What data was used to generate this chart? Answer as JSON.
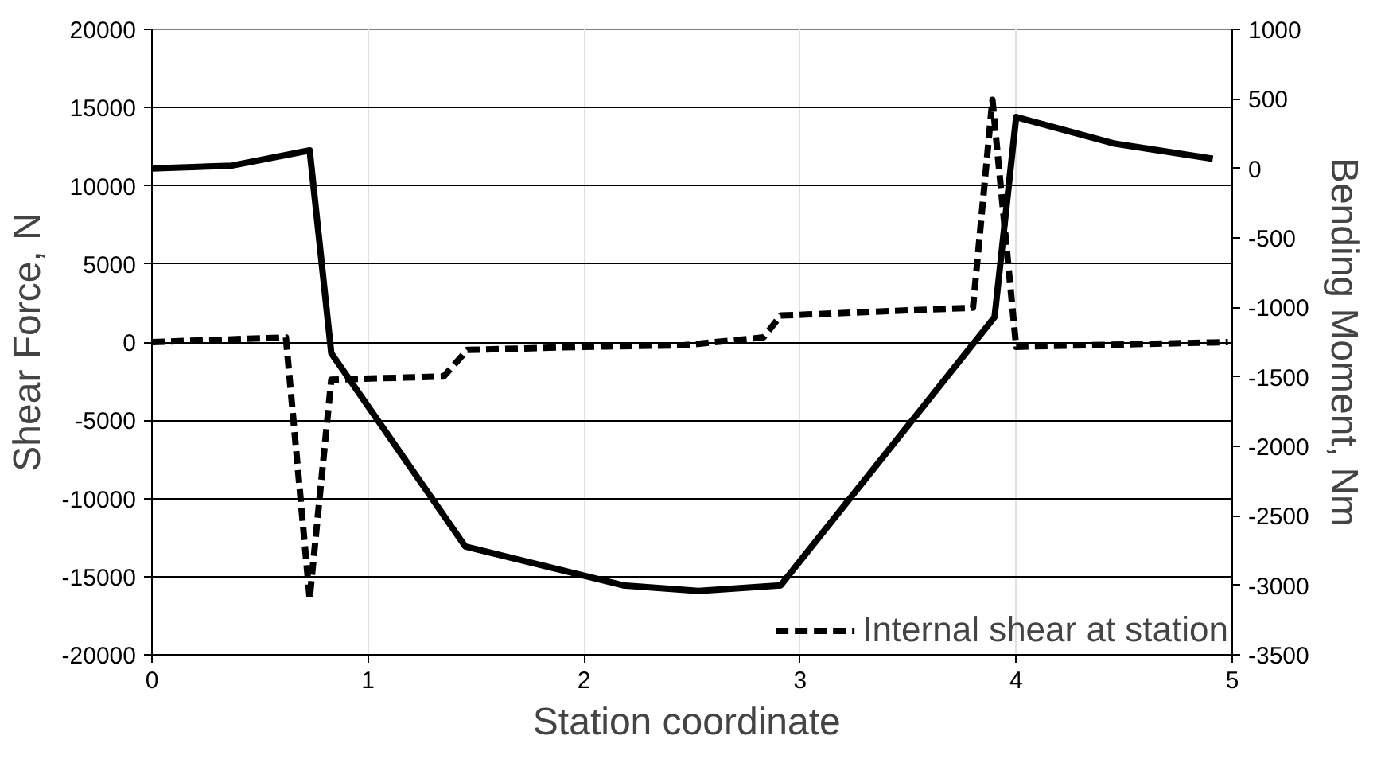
{
  "chart_data": {
    "type": "line",
    "xlabel": "Station  coordinate",
    "ylabel": "Shear Force, N",
    "y2label": "Bending Moment, Nm",
    "xlim": [
      0,
      5
    ],
    "xticks": [
      0,
      1,
      2,
      3,
      4,
      5
    ],
    "ylim": [
      -20000,
      20000
    ],
    "yticks": [
      -20000,
      -15000,
      -10000,
      -5000,
      0,
      5000,
      10000,
      15000,
      20000
    ],
    "y2lim": [
      -3500,
      1000
    ],
    "y2ticks": [
      -3500,
      -3000,
      -2500,
      -2000,
      -1500,
      -1000,
      -500,
      0,
      500,
      1000
    ],
    "grid": true,
    "legend": "bottom right",
    "marker": "none",
    "series": [
      {
        "name": "Internal shear at station",
        "color": "#000000",
        "line_style": "dashed",
        "axis": "y",
        "x": [
          0,
          0.62,
          0.73,
          0.83,
          1.35,
          1.46,
          2.0,
          2.46,
          2.83,
          2.91,
          3.8,
          3.89,
          4.0,
          4.98
        ],
        "values": [
          0,
          300,
          -16400,
          -2400,
          -2200,
          -500,
          -300,
          -200,
          300,
          1700,
          2200,
          15500,
          -300,
          0
        ]
      },
      {
        "color": "#000000",
        "line_style": "solid",
        "axis": "y2",
        "x": [
          0,
          0.37,
          0.73,
          0.83,
          1.45,
          2.18,
          2.53,
          2.91,
          3.9,
          4.0,
          4.45,
          4.91
        ],
        "values": [
          0,
          20,
          130,
          -1330,
          -2720,
          -3000,
          -3040,
          -3000,
          -1070,
          370,
          180,
          70
        ]
      }
    ]
  }
}
